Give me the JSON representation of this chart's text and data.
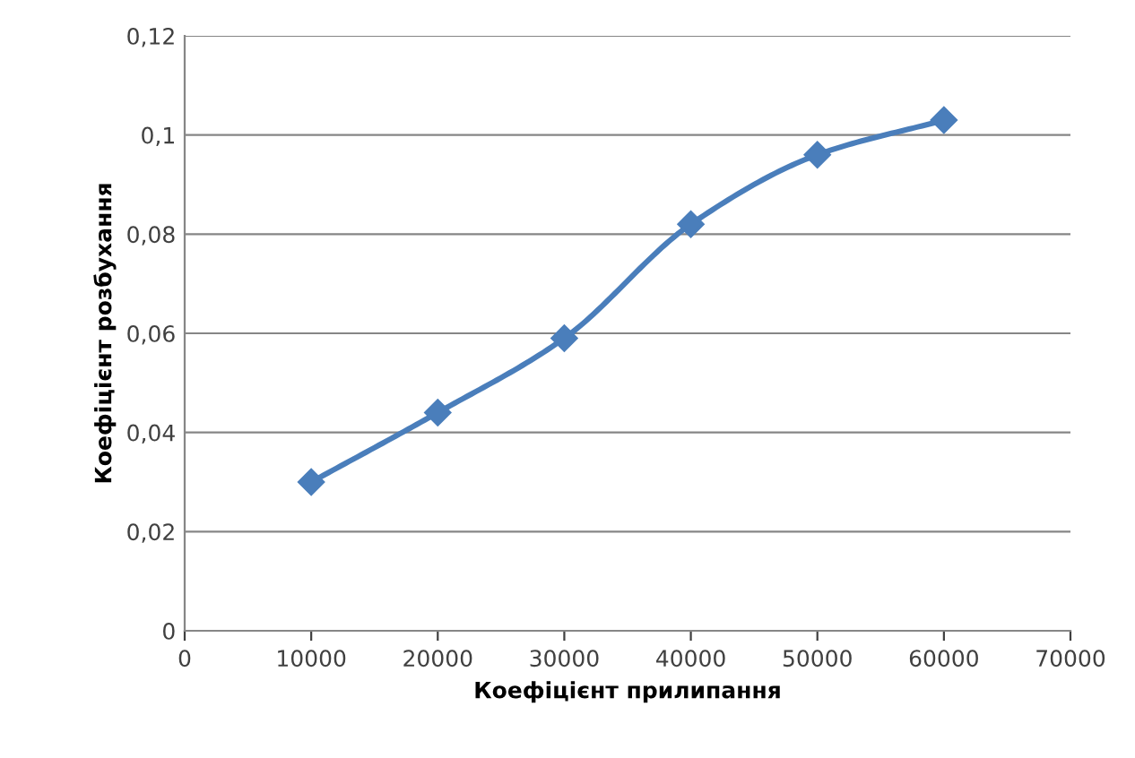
{
  "chart_data": {
    "type": "line",
    "xlabel": "Коефіцієнт прилипання",
    "ylabel": "Коефіцієнт розбухання",
    "x": [
      10000,
      20000,
      30000,
      40000,
      50000,
      60000
    ],
    "series": [
      {
        "color": "#4a7ebb",
        "values": [
          0.03,
          0.044,
          0.059,
          0.082,
          0.096,
          0.103
        ]
      }
    ],
    "xlim": [
      0,
      70000
    ],
    "xticks": [
      0,
      10000,
      20000,
      30000,
      40000,
      50000,
      60000,
      70000
    ],
    "ylim": [
      0,
      0.12
    ],
    "yticks": [
      0,
      {
        "value": 0.02,
        "label": "0,02"
      },
      {
        "value": 0.04,
        "label": "0,04"
      },
      {
        "value": 0.06,
        "label": "0,06"
      },
      {
        "value": 0.08,
        "label": "0,08"
      },
      {
        "value": 0.1,
        "label": "0,1"
      },
      {
        "value": 0.12,
        "label": "0,12"
      }
    ],
    "grid": "y",
    "marker": "diamond",
    "line_style": "solid",
    "legend": false
  }
}
